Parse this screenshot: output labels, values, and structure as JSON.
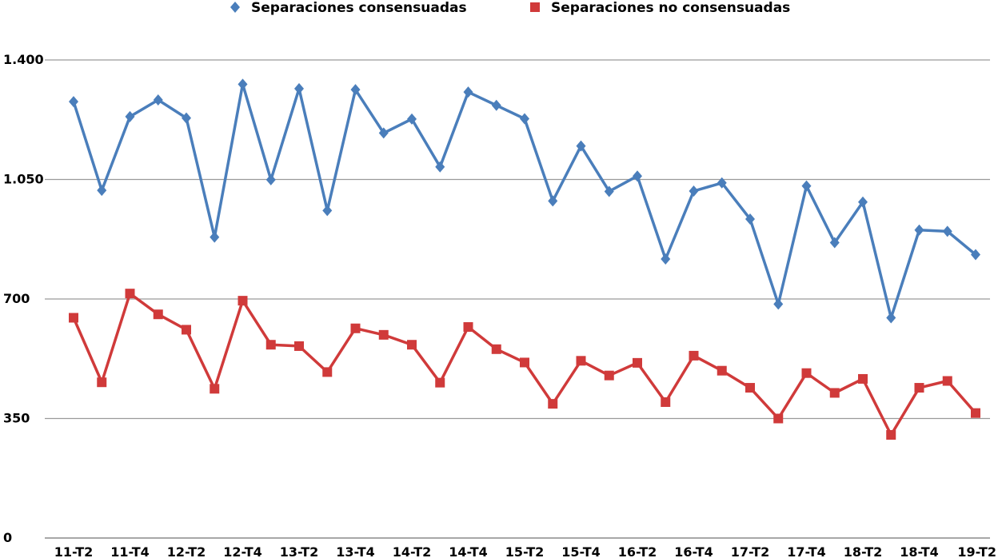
{
  "colors": {
    "series1": "#4a7ebb",
    "series2": "#d03a3a",
    "grid": "#9a9a9a",
    "axis": "#8c8c8c"
  },
  "chart_data": {
    "type": "line",
    "ylim": [
      0,
      1400
    ],
    "yticks": [
      {
        "value": 0,
        "label": "0"
      },
      {
        "value": 350,
        "label": "350"
      },
      {
        "value": 700,
        "label": "700"
      },
      {
        "value": 1050,
        "label": "1.050"
      },
      {
        "value": 1400,
        "label": "1.400"
      }
    ],
    "grid": true,
    "legend": "top",
    "x": [
      "11-T2",
      "11-T3",
      "11-T4",
      "12-T1",
      "12-T2",
      "12-T3",
      "12-T4",
      "13-T1",
      "13-T2",
      "13-T3",
      "13-T4",
      "14-T1",
      "14-T2",
      "14-T3",
      "14-T4",
      "15-T1",
      "15-T2",
      "15-T3",
      "15-T4",
      "16-T1",
      "16-T2",
      "16-T3",
      "16-T4",
      "17-T1",
      "17-T2",
      "17-T3",
      "17-T4",
      "18-T1",
      "18-T2",
      "18-T3",
      "18-T4",
      "19-T1",
      "19-T2"
    ],
    "xtick_labels": [
      "11-T2",
      "11-T4",
      "12-T2",
      "12-T4",
      "13-T2",
      "13-T4",
      "14-T2",
      "14-T4",
      "15-T2",
      "15-T4",
      "16-T2",
      "16-T4",
      "17-T2",
      "17-T4",
      "18-T2",
      "18-T4",
      "19-T2"
    ],
    "series": [
      {
        "name": "Separaciones consensuadas",
        "marker": "diamond",
        "values": [
          1278,
          1018,
          1234,
          1283,
          1230,
          881,
          1329,
          1049,
          1316,
          959,
          1313,
          1186,
          1227,
          1087,
          1306,
          1267,
          1228,
          987,
          1148,
          1015,
          1060,
          817,
          1016,
          1040,
          934,
          685,
          1031,
          865,
          984,
          645,
          902,
          898,
          830
        ]
      },
      {
        "name": "Separaciones no consensuadas",
        "marker": "square",
        "values": [
          645,
          456,
          716,
          655,
          610,
          437,
          695,
          566,
          562,
          486,
          614,
          595,
          566,
          455,
          618,
          553,
          514,
          393,
          519,
          476,
          513,
          398,
          534,
          490,
          440,
          350,
          483,
          425,
          466,
          302,
          440,
          460,
          366
        ]
      }
    ]
  }
}
